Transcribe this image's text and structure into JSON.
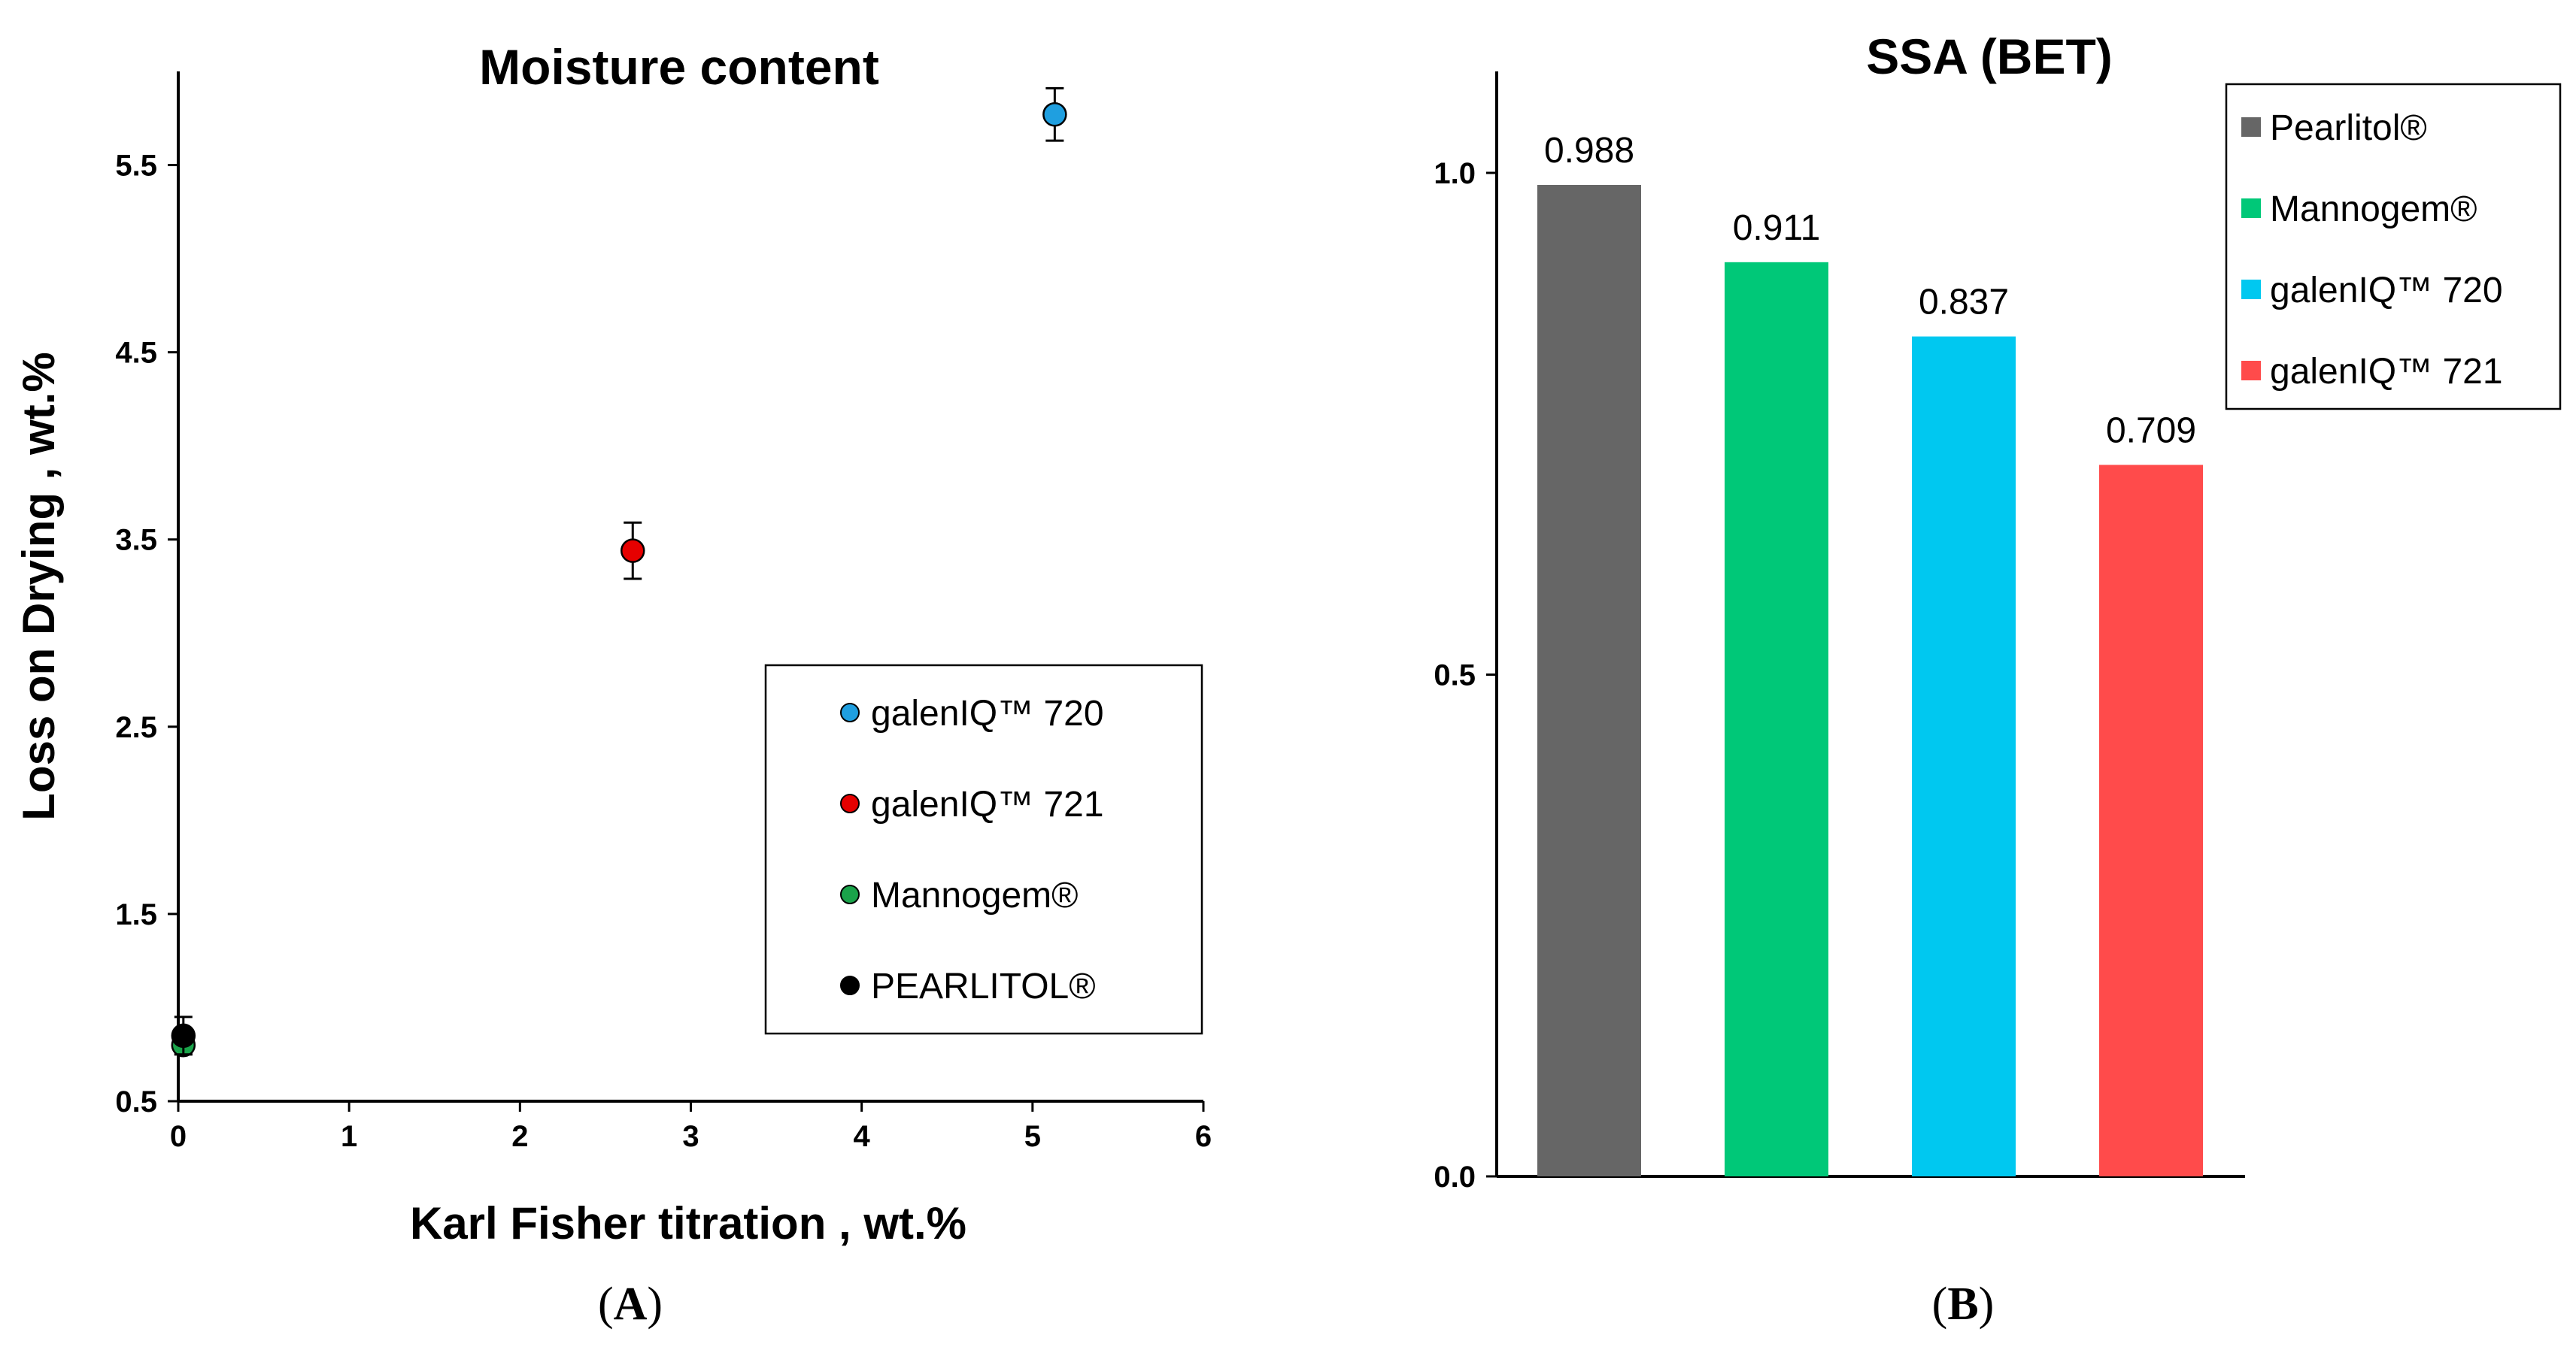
{
  "chart_data": [
    {
      "type": "scatter",
      "panel_label": "A",
      "title": "Moisture content",
      "xlabel": "Karl Fisher titration , wt.%",
      "ylabel": "Loss on Drying , wt.%",
      "xlim": [
        0,
        6
      ],
      "ylim": [
        0.5,
        6.0
      ],
      "x_ticks": [
        "0",
        "1",
        "2",
        "3",
        "4",
        "5",
        "6"
      ],
      "y_ticks": [
        "0.5",
        "1.5",
        "2.5",
        "3.5",
        "4.5",
        "5.5"
      ],
      "grid": false,
      "legend_position": "right-middle",
      "series": [
        {
          "name": "galenIQ™ 720",
          "color": "#1f9fe0",
          "x": 5.13,
          "y": 5.77,
          "err": 0.14
        },
        {
          "name": "galenIQ™ 721",
          "color": "#e60000",
          "x": 2.66,
          "y": 3.44,
          "err": 0.15
        },
        {
          "name": "Mannogem®",
          "color": "#1aa34a",
          "x": 0.03,
          "y": 0.8,
          "err": 0.05
        },
        {
          "name": "PEARLITOL®",
          "color": "#000000",
          "x": 0.03,
          "y": 0.85,
          "err": 0.1
        }
      ]
    },
    {
      "type": "bar",
      "panel_label": "B",
      "title": "SSA (BET)",
      "xlabel": "",
      "ylabel": "",
      "ylim": [
        0,
        1.0
      ],
      "y_ticks": [
        "0.0",
        "0.5",
        "1.0"
      ],
      "grid": false,
      "legend_position": "top-right",
      "categories": [
        "Pearlitol®",
        "Mannogem®",
        "galenIQ™ 720",
        "galenIQ™ 721"
      ],
      "values": [
        0.988,
        0.911,
        0.837,
        0.709
      ],
      "value_labels": [
        "0.988",
        "0.911",
        "0.837",
        "0.709"
      ],
      "colors": [
        "#666666",
        "#00c878",
        "#00c8f0",
        "#ff4b4b"
      ]
    }
  ]
}
